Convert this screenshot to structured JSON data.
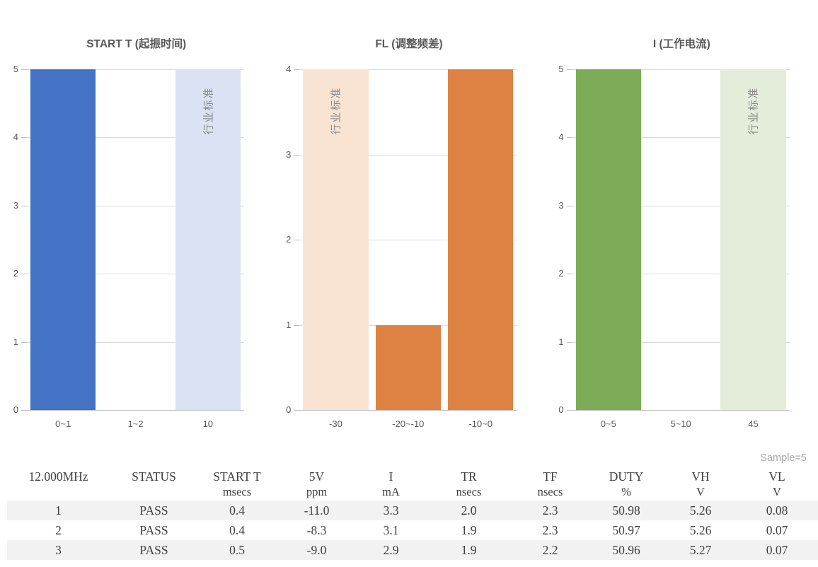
{
  "colors": {
    "blue": "#4472C4",
    "blue_light": "#DAE2F3",
    "orange": "#DE8244",
    "orange_light": "#F9E4D3",
    "green": "#7CAC55",
    "green_light": "#E3EDD9",
    "gridline": "#D9D9D9",
    "axis_text": "#595959",
    "table_text": "#404040",
    "row_stripe": "#F2F2F2",
    "note_gray": "#A6A6A6"
  },
  "chart_data": [
    {
      "type": "bar",
      "title": "START T (起振时间)",
      "categories": [
        "0~1",
        "1~2",
        "10"
      ],
      "values": [
        5,
        0,
        5
      ],
      "ylim": [
        0,
        5
      ],
      "yticks": [
        0,
        1,
        2,
        3,
        4,
        5
      ],
      "grid": true,
      "legend": "none",
      "bar_colors": [
        "#4472C4",
        "#4472C4",
        "#DAE2F3"
      ],
      "standard_bar": {
        "index": 2,
        "label": "行业标准"
      }
    },
    {
      "type": "bar",
      "title": "FL (调整频差)",
      "categories": [
        "-30",
        "-20~-10",
        "-10~0"
      ],
      "values": [
        4,
        1,
        4
      ],
      "ylim": [
        0,
        4
      ],
      "yticks": [
        0,
        1,
        2,
        3,
        4
      ],
      "grid": true,
      "legend": "none",
      "bar_colors": [
        "#F9E4D3",
        "#DE8244",
        "#DE8244"
      ],
      "standard_bar": {
        "index": 0,
        "label": "行业标准"
      }
    },
    {
      "type": "bar",
      "title": "I (工作电流)",
      "categories": [
        "0~5",
        "5~10",
        "45"
      ],
      "values": [
        5,
        0,
        5
      ],
      "ylim": [
        0,
        5
      ],
      "yticks": [
        0,
        1,
        2,
        3,
        4,
        5
      ],
      "grid": true,
      "legend": "none",
      "bar_colors": [
        "#7CAC55",
        "#7CAC55",
        "#E3EDD9"
      ],
      "standard_bar": {
        "index": 2,
        "label": "行业标准"
      }
    },
    {
      "type": "table",
      "sample_note": "Sample=5",
      "columns": [
        {
          "label": "12.000MHz",
          "unit": ""
        },
        {
          "label": "STATUS",
          "unit": ""
        },
        {
          "label": "START T",
          "unit": "msecs"
        },
        {
          "label": "5V",
          "unit": "ppm"
        },
        {
          "label": "I",
          "unit": "mA"
        },
        {
          "label": "TR",
          "unit": "nsecs"
        },
        {
          "label": "TF",
          "unit": "nsecs"
        },
        {
          "label": "DUTY",
          "unit": "%"
        },
        {
          "label": "VH",
          "unit": "V"
        },
        {
          "label": "VL",
          "unit": "V"
        }
      ],
      "rows": [
        [
          "1",
          "PASS",
          "0.4",
          "-11.0",
          "3.3",
          "2.0",
          "2.3",
          "50.98",
          "5.26",
          "0.08"
        ],
        [
          "2",
          "PASS",
          "0.4",
          "-8.3",
          "3.1",
          "1.9",
          "2.3",
          "50.97",
          "5.26",
          "0.07"
        ],
        [
          "3",
          "PASS",
          "0.5",
          "-9.0",
          "2.9",
          "1.9",
          "2.2",
          "50.96",
          "5.27",
          "0.07"
        ]
      ]
    }
  ]
}
